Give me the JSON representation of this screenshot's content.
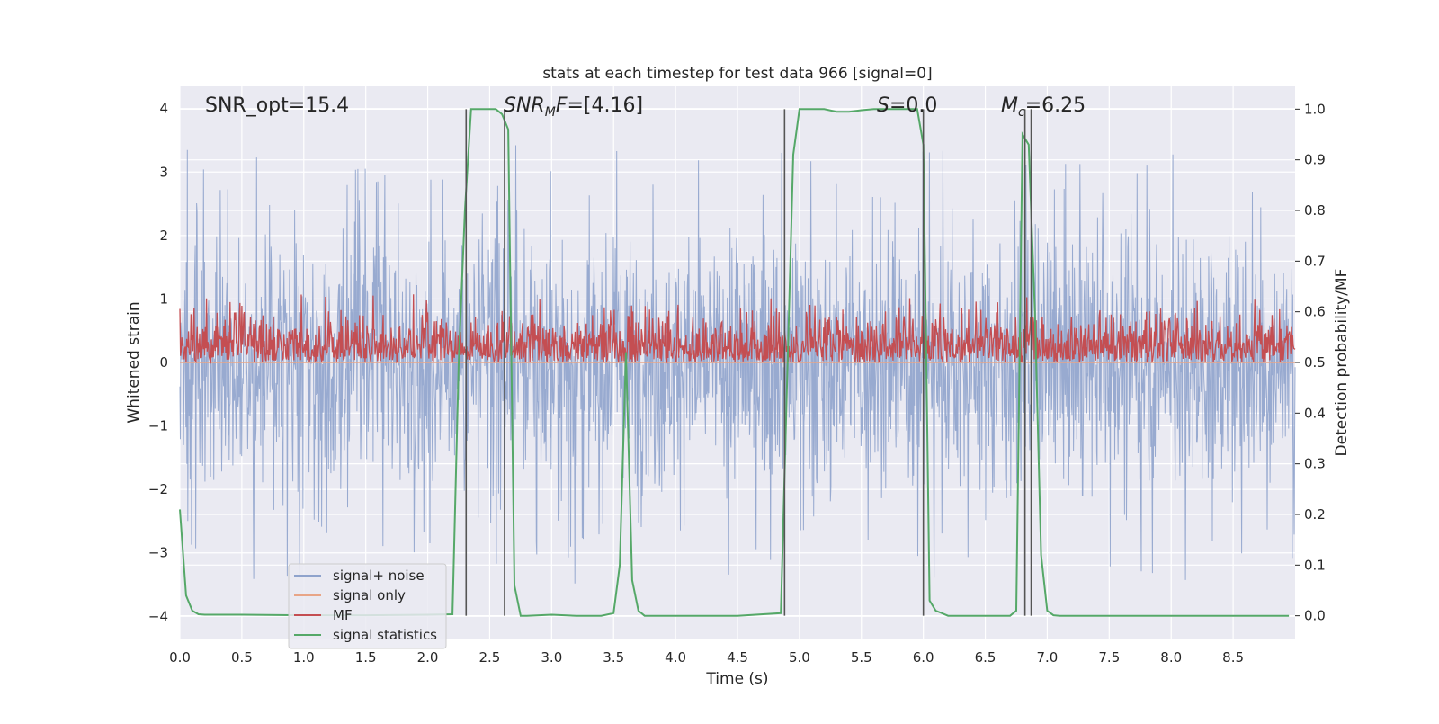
{
  "chart_data": {
    "type": "line",
    "title": "stats at each timestep for test data 966 [signal=0]",
    "xlabel": "Time (s)",
    "ylabel": "Whitened strain",
    "y2label": "Detection probability/MF",
    "xlim": [
      0.0,
      9.0
    ],
    "ylim": [
      -4.35,
      4.35
    ],
    "y2lim": [
      -0.045,
      1.045
    ],
    "grid": true,
    "legend_placement": "lower-left",
    "x_ticks": [
      "0.0",
      "0.5",
      "1.0",
      "1.5",
      "2.0",
      "2.5",
      "3.0",
      "3.5",
      "4.0",
      "4.5",
      "5.0",
      "5.5",
      "6.0",
      "6.5",
      "7.0",
      "7.5",
      "8.0",
      "8.5"
    ],
    "y_ticks": [
      "−4",
      "−3",
      "−2",
      "−1",
      "0",
      "1",
      "2",
      "3",
      "4"
    ],
    "y2_ticks": [
      "0.0",
      "0.1",
      "0.2",
      "0.3",
      "0.4",
      "0.5",
      "0.6",
      "0.7",
      "0.8",
      "0.9",
      "1.0"
    ],
    "annotations": {
      "snr_opt": "SNR_opt=15.4",
      "snr_mf": "SNR_MF=[4.16]",
      "s_value": "S=0.0",
      "mc_value": "M_c=6.25"
    },
    "series": [
      {
        "name": "signal+ noise",
        "color": "#8fa3cc",
        "axis": "left",
        "description_values": "whitened strain noise, approx. amplitude envelope ±2.5 with spikes to ±3.5",
        "envelope": [
          -2.5,
          2.5
        ]
      },
      {
        "name": "signal only",
        "color": "#e8a587",
        "axis": "left",
        "x": [
          0.0,
          9.0
        ],
        "y": [
          0.0,
          0.0
        ]
      },
      {
        "name": "MF",
        "color": "#c44e52",
        "axis": "right",
        "description_values": "matched filter output approx. between 0.5 and 0.62",
        "range": [
          0.5,
          0.62
        ]
      },
      {
        "name": "signal statistics",
        "color": "#55a868",
        "axis": "right",
        "x": [
          0.0,
          0.05,
          0.1,
          0.15,
          0.2,
          0.5,
          1.0,
          1.5,
          2.0,
          2.2,
          2.25,
          2.3,
          2.35,
          2.4,
          2.45,
          2.5,
          2.55,
          2.6,
          2.65,
          2.7,
          2.75,
          2.8,
          3.0,
          3.2,
          3.4,
          3.5,
          3.55,
          3.6,
          3.65,
          3.7,
          3.75,
          3.8,
          4.0,
          4.5,
          4.85,
          4.9,
          4.95,
          5.0,
          5.1,
          5.2,
          5.3,
          5.4,
          5.5,
          5.6,
          5.7,
          5.8,
          5.9,
          5.95,
          6.0,
          6.05,
          6.1,
          6.2,
          6.5,
          6.7,
          6.75,
          6.8,
          6.85,
          6.9,
          6.95,
          7.0,
          7.05,
          7.1,
          7.5,
          8.0,
          8.5,
          8.95
        ],
        "y": [
          0.21,
          0.04,
          0.01,
          0.003,
          0.002,
          0.002,
          0.001,
          0.001,
          0.002,
          0.003,
          0.5,
          0.8,
          1.0,
          1.0,
          1.0,
          1.0,
          1.0,
          0.99,
          0.96,
          0.06,
          0.0,
          0.0,
          0.002,
          0.0,
          0.0,
          0.005,
          0.1,
          0.52,
          0.07,
          0.01,
          0.0,
          0.0,
          0.0,
          0.0,
          0.005,
          0.46,
          0.91,
          1.0,
          1.0,
          1.0,
          0.995,
          0.995,
          0.998,
          1.0,
          1.0,
          1.0,
          1.0,
          1.0,
          0.93,
          0.03,
          0.01,
          0.0,
          0.0,
          0.0,
          0.01,
          0.95,
          0.93,
          0.6,
          0.12,
          0.01,
          0.001,
          0.0,
          0.0,
          0.0,
          0.0,
          0.0
        ]
      }
    ],
    "vertical_lines_x": [
      2.31,
      2.62,
      4.88,
      6.0,
      6.82,
      6.87
    ]
  }
}
